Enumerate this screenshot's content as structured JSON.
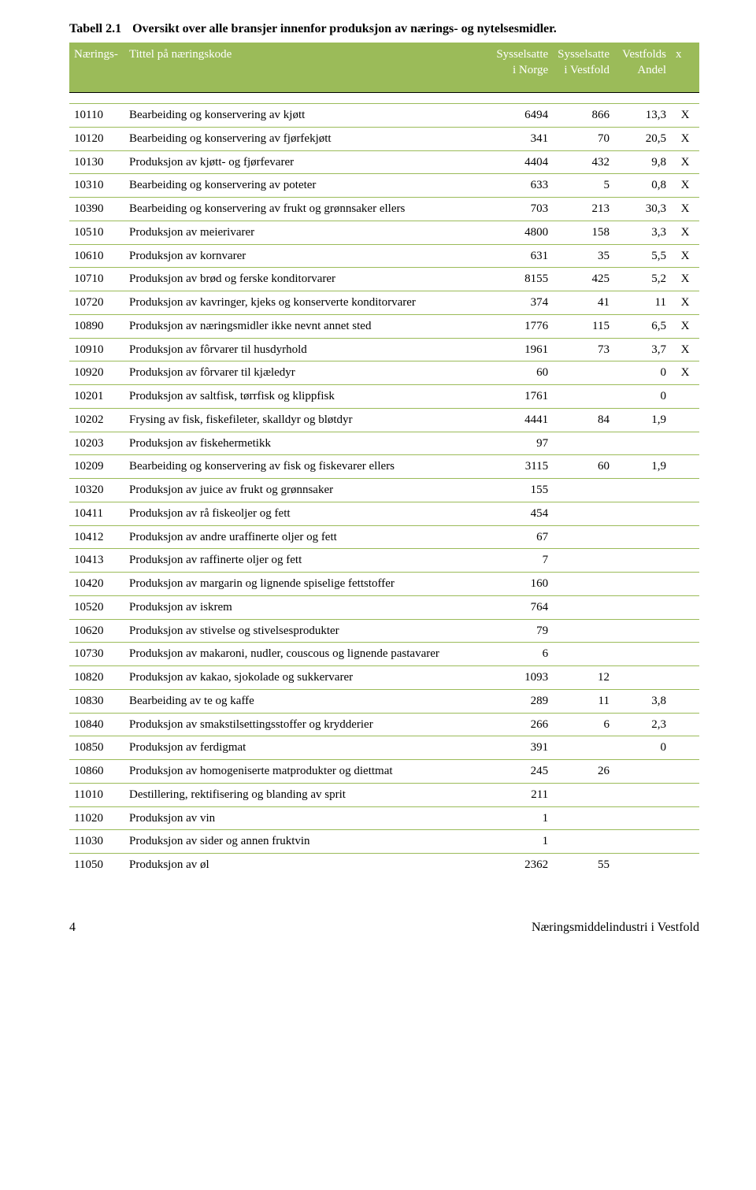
{
  "colors": {
    "header_bg": "#9bbb59",
    "row_border": "#9bbb59",
    "text": "#000000",
    "header_text": "#ffffff"
  },
  "caption": {
    "label": "Tabell 2.1",
    "title": "Oversikt over alle bransjer innenfor produksjon av nærings- og nytelsesmidler."
  },
  "columns": [
    {
      "key": "code",
      "label": "Nærings-",
      "class": "code"
    },
    {
      "key": "title",
      "label": "Tittel på næringskode",
      "class": "title"
    },
    {
      "key": "nor",
      "label": "Sysselsatte\ni Norge",
      "class": "num"
    },
    {
      "key": "vf",
      "label": "Sysselsatte\ni Vestfold",
      "class": "num"
    },
    {
      "key": "andel",
      "label": "Vestfolds\nAndel",
      "class": "num"
    },
    {
      "key": "x",
      "label": "x",
      "class": "x"
    }
  ],
  "rows": [
    {
      "code": "10110",
      "title": "Bearbeiding og konservering av kjøtt",
      "nor": "6494",
      "vf": "866",
      "andel": "13,3",
      "x": "X"
    },
    {
      "code": "10120",
      "title": "Bearbeiding og konservering av fjørfekjøtt",
      "nor": "341",
      "vf": "70",
      "andel": "20,5",
      "x": "X"
    },
    {
      "code": "10130",
      "title": "Produksjon av kjøtt- og fjørfevarer",
      "nor": "4404",
      "vf": "432",
      "andel": "9,8",
      "x": "X"
    },
    {
      "code": "10310",
      "title": "Bearbeiding og konservering av poteter",
      "nor": "633",
      "vf": "5",
      "andel": "0,8",
      "x": "X"
    },
    {
      "code": "10390",
      "title": "Bearbeiding og konservering av frukt og grønnsaker ellers",
      "nor": "703",
      "vf": "213",
      "andel": "30,3",
      "x": "X"
    },
    {
      "code": "10510",
      "title": "Produksjon av meierivarer",
      "nor": "4800",
      "vf": "158",
      "andel": "3,3",
      "x": "X"
    },
    {
      "code": "10610",
      "title": "Produksjon av kornvarer",
      "nor": "631",
      "vf": "35",
      "andel": "5,5",
      "x": "X"
    },
    {
      "code": "10710",
      "title": "Produksjon av brød og ferske konditorvarer",
      "nor": "8155",
      "vf": "425",
      "andel": "5,2",
      "x": "X"
    },
    {
      "code": "10720",
      "title": "Produksjon av kavringer, kjeks og konserverte konditorvarer",
      "nor": "374",
      "vf": "41",
      "andel": "11",
      "x": "X"
    },
    {
      "code": "10890",
      "title": "Produksjon av næringsmidler ikke nevnt annet sted",
      "nor": "1776",
      "vf": "115",
      "andel": "6,5",
      "x": "X"
    },
    {
      "code": "10910",
      "title": "Produksjon av fôrvarer til husdyrhold",
      "nor": "1961",
      "vf": "73",
      "andel": "3,7",
      "x": "X"
    },
    {
      "code": "10920",
      "title": "Produksjon av fôrvarer til kjæledyr",
      "nor": "60",
      "vf": "",
      "andel": "0",
      "x": "X"
    },
    {
      "code": "10201",
      "title": "Produksjon av saltfisk, tørrfisk og klippfisk",
      "nor": "1761",
      "vf": "",
      "andel": "0",
      "x": ""
    },
    {
      "code": "10202",
      "title": "Frysing av fisk, fiskefileter, skalldyr og bløtdyr",
      "nor": "4441",
      "vf": "84",
      "andel": "1,9",
      "x": ""
    },
    {
      "code": "10203",
      "title": "Produksjon av fiskehermetikk",
      "nor": "97",
      "vf": "",
      "andel": "",
      "x": ""
    },
    {
      "code": "10209",
      "title": "Bearbeiding og konservering av fisk og fiskevarer ellers",
      "nor": "3115",
      "vf": "60",
      "andel": "1,9",
      "x": ""
    },
    {
      "code": "10320",
      "title": "Produksjon av juice av frukt og grønnsaker",
      "nor": "155",
      "vf": "",
      "andel": "",
      "x": ""
    },
    {
      "code": "10411",
      "title": "Produksjon av rå fiskeoljer og fett",
      "nor": "454",
      "vf": "",
      "andel": "",
      "x": ""
    },
    {
      "code": "10412",
      "title": "Produksjon av andre uraffinerte oljer og fett",
      "nor": "67",
      "vf": "",
      "andel": "",
      "x": ""
    },
    {
      "code": "10413",
      "title": "Produksjon av raffinerte oljer og fett",
      "nor": "7",
      "vf": "",
      "andel": "",
      "x": ""
    },
    {
      "code": "10420",
      "title": "Produksjon av margarin og lignende spiselige fettstoffer",
      "nor": "160",
      "vf": "",
      "andel": "",
      "x": ""
    },
    {
      "code": "10520",
      "title": "Produksjon av iskrem",
      "nor": "764",
      "vf": "",
      "andel": "",
      "x": ""
    },
    {
      "code": "10620",
      "title": "Produksjon av stivelse og stivelsesprodukter",
      "nor": "79",
      "vf": "",
      "andel": "",
      "x": ""
    },
    {
      "code": "10730",
      "title": "Produksjon av makaroni, nudler, couscous og lignende pastavarer",
      "nor": "6",
      "vf": "",
      "andel": "",
      "x": ""
    },
    {
      "code": "10820",
      "title": "Produksjon av kakao, sjokolade og sukkervarer",
      "nor": "1093",
      "vf": "12",
      "andel": "",
      "x": ""
    },
    {
      "code": "10830",
      "title": "Bearbeiding av te og kaffe",
      "nor": "289",
      "vf": "11",
      "andel": "3,8",
      "x": ""
    },
    {
      "code": "10840",
      "title": "Produksjon av smakstilsettingsstoffer og krydderier",
      "nor": "266",
      "vf": "6",
      "andel": "2,3",
      "x": ""
    },
    {
      "code": "10850",
      "title": "Produksjon av ferdigmat",
      "nor": "391",
      "vf": "",
      "andel": "0",
      "x": ""
    },
    {
      "code": "10860",
      "title": "Produksjon av homogeniserte matprodukter og diettmat",
      "nor": "245",
      "vf": "26",
      "andel": "",
      "x": ""
    },
    {
      "code": "11010",
      "title": "Destillering, rektifisering og blanding av sprit",
      "nor": "211",
      "vf": "",
      "andel": "",
      "x": ""
    },
    {
      "code": "11020",
      "title": "Produksjon av vin",
      "nor": "1",
      "vf": "",
      "andel": "",
      "x": ""
    },
    {
      "code": "11030",
      "title": "Produksjon av sider og annen fruktvin",
      "nor": "1",
      "vf": "",
      "andel": "",
      "x": ""
    },
    {
      "code": "11050",
      "title": "Produksjon av øl",
      "nor": "2362",
      "vf": "55",
      "andel": "",
      "x": ""
    }
  ],
  "footer": {
    "page": "4",
    "doc": "Næringsmiddelindustri i Vestfold"
  }
}
